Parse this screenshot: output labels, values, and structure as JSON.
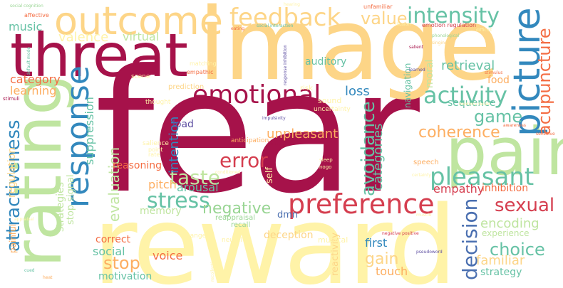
{
  "words": {
    "fear": "fear",
    "image": "image",
    "reward": "reward",
    "threat": "threat",
    "outcome": "outcome",
    "rating": "rating",
    "pain": "pain",
    "response": "response",
    "picture": "picture",
    "emotional": "emotional",
    "preference": "preference",
    "feedback": "feedback",
    "intensity": "intensity",
    "activity": "activity",
    "pleasant": "pleasant",
    "attractiveness": "attractiveness",
    "stress": "stress",
    "error": "error",
    "sexual": "sexual",
    "avoidance": "avoidance",
    "decision": "decision",
    "taste": "taste",
    "negative": "negative",
    "value": "value",
    "acupuncture": "acupuncture",
    "game": "game",
    "coherence": "coherence",
    "choice": "choice",
    "stop": "stop",
    "gain": "gain",
    "category": "category",
    "learning": "learning",
    "music": "music",
    "retrieval": "retrieval",
    "empathy": "empathy",
    "familiar": "familiar",
    "encoding": "encoding",
    "social": "social",
    "voice": "voice",
    "evaluation": "evaluation",
    "intention": "intention",
    "unpleasant": "unpleasant",
    "categories": "categories",
    "loss": "loss",
    "arousal": "arousal",
    "pitch": "pitch",
    "load": "load",
    "suppression": "suppression",
    "memory": "memory",
    "first": "first",
    "deception": "deception",
    "correct": "correct",
    "touch": "touch",
    "strategy": "strategy",
    "motivation": "motivation",
    "inhibition": "inhibition",
    "experience": "experience",
    "reactivity": "reactivity",
    "sequence": "sequence",
    "food": "food",
    "moral": "moral",
    "navigation": "navigation",
    "auditory": "auditory",
    "virtual": "virtual",
    "valence": "valence",
    "reasoning": "reasoning",
    "strategies": "strategies",
    "regulation": "regulation",
    "stop_signal": "stop signal",
    "dmn": "dmn",
    "self": "self",
    "reappraisal": "reappraisal",
    "recall": "recall",
    "painful": "painful",
    "musical": "musical",
    "neural": "neural",
    "change": "change",
    "speech": "speech",
    "risk": "risk",
    "sound": "sound",
    "uncertainty": "uncertainty",
    "anticipation": "anticipation",
    "scene": "scene",
    "thought": "thought",
    "prediction": "prediction",
    "salience": "salience",
    "point": "point",
    "rate": "rate",
    "empathic": "empathic",
    "matching": "matching",
    "affective": "affective",
    "social_cognition": "social cognition",
    "unfamiliar": "unfamiliar",
    "eating": "eating",
    "social_interaction": "social interaction",
    "illusion": "illusion",
    "emotion_regulation": "emotion regulation",
    "difficult": "difficult",
    "phonological": "phonological",
    "singing": "singing",
    "salient": "salient",
    "learned": "learned",
    "response_inhibition": "response inhibition",
    "default_mode": "default mode",
    "stimuli": "stimuli",
    "sleep": "sleep",
    "nogo": "nogo",
    "negative_positive": "negative positive",
    "appraisal": "appraisal",
    "awareness": "awareness",
    "stimulus": "stimulus",
    "memory_recall": "memory recall",
    "impulsivity": "impulsivity",
    "behavior": "behavior",
    "sensitive": "sensitive",
    "certainty": "certainty",
    "muscle": "muscle",
    "cued": "cued",
    "heat": "heat",
    "recollection": "recollection",
    "pseudoword": "pseudoword",
    "hearing": "hearing",
    "conditioned": "conditioned"
  }
}
